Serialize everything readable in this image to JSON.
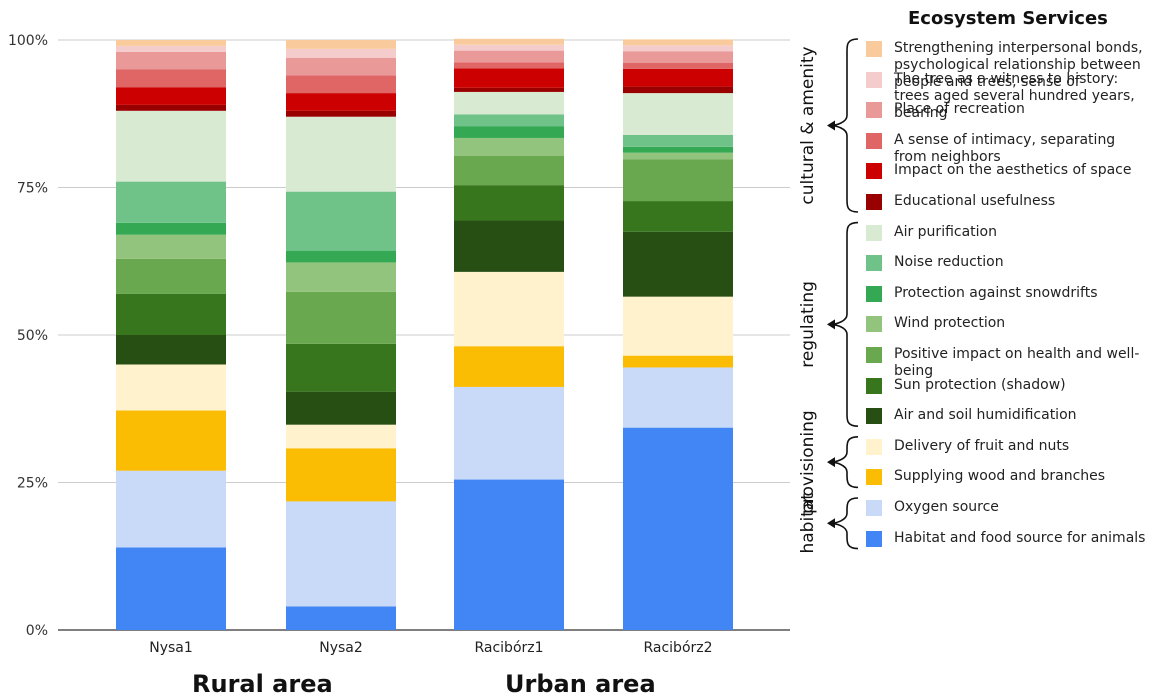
{
  "chart_data": {
    "type": "bar",
    "stacked": true,
    "stack_order": "bottom-to-top",
    "categories": [
      "Nysa1",
      "Nysa2",
      "Racibórz1",
      "Racibórz2"
    ],
    "category_groups": [
      {
        "label": "Rural area",
        "categories": [
          "Nysa1",
          "Nysa2"
        ]
      },
      {
        "label": "Urban area",
        "categories": [
          "Racibórz1",
          "Racibórz2"
        ]
      }
    ],
    "ylim": [
      0,
      100
    ],
    "yticks": [
      "0%",
      "25%",
      "50%",
      "75%",
      "100%"
    ],
    "ytick_values": [
      0,
      25,
      50,
      75,
      100
    ],
    "grid": true,
    "legend_title": "Ecosystem Services",
    "legend_placement": "right",
    "service_groups": [
      {
        "label": "habitat",
        "first": 0,
        "last": 1
      },
      {
        "label": "provisioning",
        "first": 2,
        "last": 3
      },
      {
        "label": "regulating",
        "first": 4,
        "last": 10
      },
      {
        "label": "cultural & amenity",
        "first": 11,
        "last": 16
      }
    ],
    "series": [
      {
        "name": "Habitat and food source for animals",
        "color": "#4285f4",
        "values": [
          14,
          4,
          25.5,
          34.3
        ]
      },
      {
        "name": "Oxygen source",
        "color": "#c9daf8",
        "values": [
          13,
          17.8,
          15.7,
          10.2
        ]
      },
      {
        "name": "Supplying wood and branches",
        "color": "#fbbc04",
        "values": [
          10.2,
          9,
          6.9,
          2
        ]
      },
      {
        "name": "Delivery of fruit and nuts",
        "color": "#fff2cc",
        "values": [
          7.8,
          4,
          12.6,
          10
        ]
      },
      {
        "name": "Air and soil humidification",
        "color": "#274e13",
        "values": [
          5,
          5.6,
          8.7,
          11
        ]
      },
      {
        "name": "Sun protection (shadow)",
        "color": "#38761d",
        "values": [
          7,
          8.1,
          6,
          5.2
        ]
      },
      {
        "name": "Positive impact on health and well-being",
        "color": "#6aa84f",
        "values": [
          5.9,
          8.8,
          5,
          7.1
        ]
      },
      {
        "name": "Wind protection",
        "color": "#93c47d",
        "values": [
          4.1,
          5,
          3,
          1.1
        ]
      },
      {
        "name": "Protection against snowdrifts",
        "color": "#34a853",
        "values": [
          2,
          2,
          2,
          1
        ]
      },
      {
        "name": "Noise reduction",
        "color": "#6fc389",
        "values": [
          7,
          10,
          2,
          2
        ]
      },
      {
        "name": "Air purification",
        "color": "#d9ead3",
        "values": [
          12,
          12.7,
          3.8,
          7.1
        ]
      },
      {
        "name": "Educational usefulness",
        "color": "#990000",
        "values": [
          1,
          1,
          0.7,
          1.1
        ]
      },
      {
        "name": "Impact on the aesthetics of space",
        "color": "#cc0000",
        "values": [
          3,
          3,
          3.3,
          3
        ]
      },
      {
        "name": "A sense of intimacy, separating from neighbors",
        "color": "#e06666",
        "values": [
          3,
          3,
          1,
          1
        ]
      },
      {
        "name": "Place of recreation",
        "color": "#ea9999",
        "values": [
          3,
          3,
          2,
          2
        ]
      },
      {
        "name": "The tree as a witness to history: trees aged several hundred years, bearing",
        "color": "#f4cccc",
        "values": [
          1,
          1.5,
          1,
          1
        ]
      },
      {
        "name": "Strengthening interpersonal bonds, psychological relationship between people and trees, sense of",
        "color": "#f9cb9c",
        "values": [
          1,
          1.5,
          1,
          1
        ]
      }
    ]
  }
}
